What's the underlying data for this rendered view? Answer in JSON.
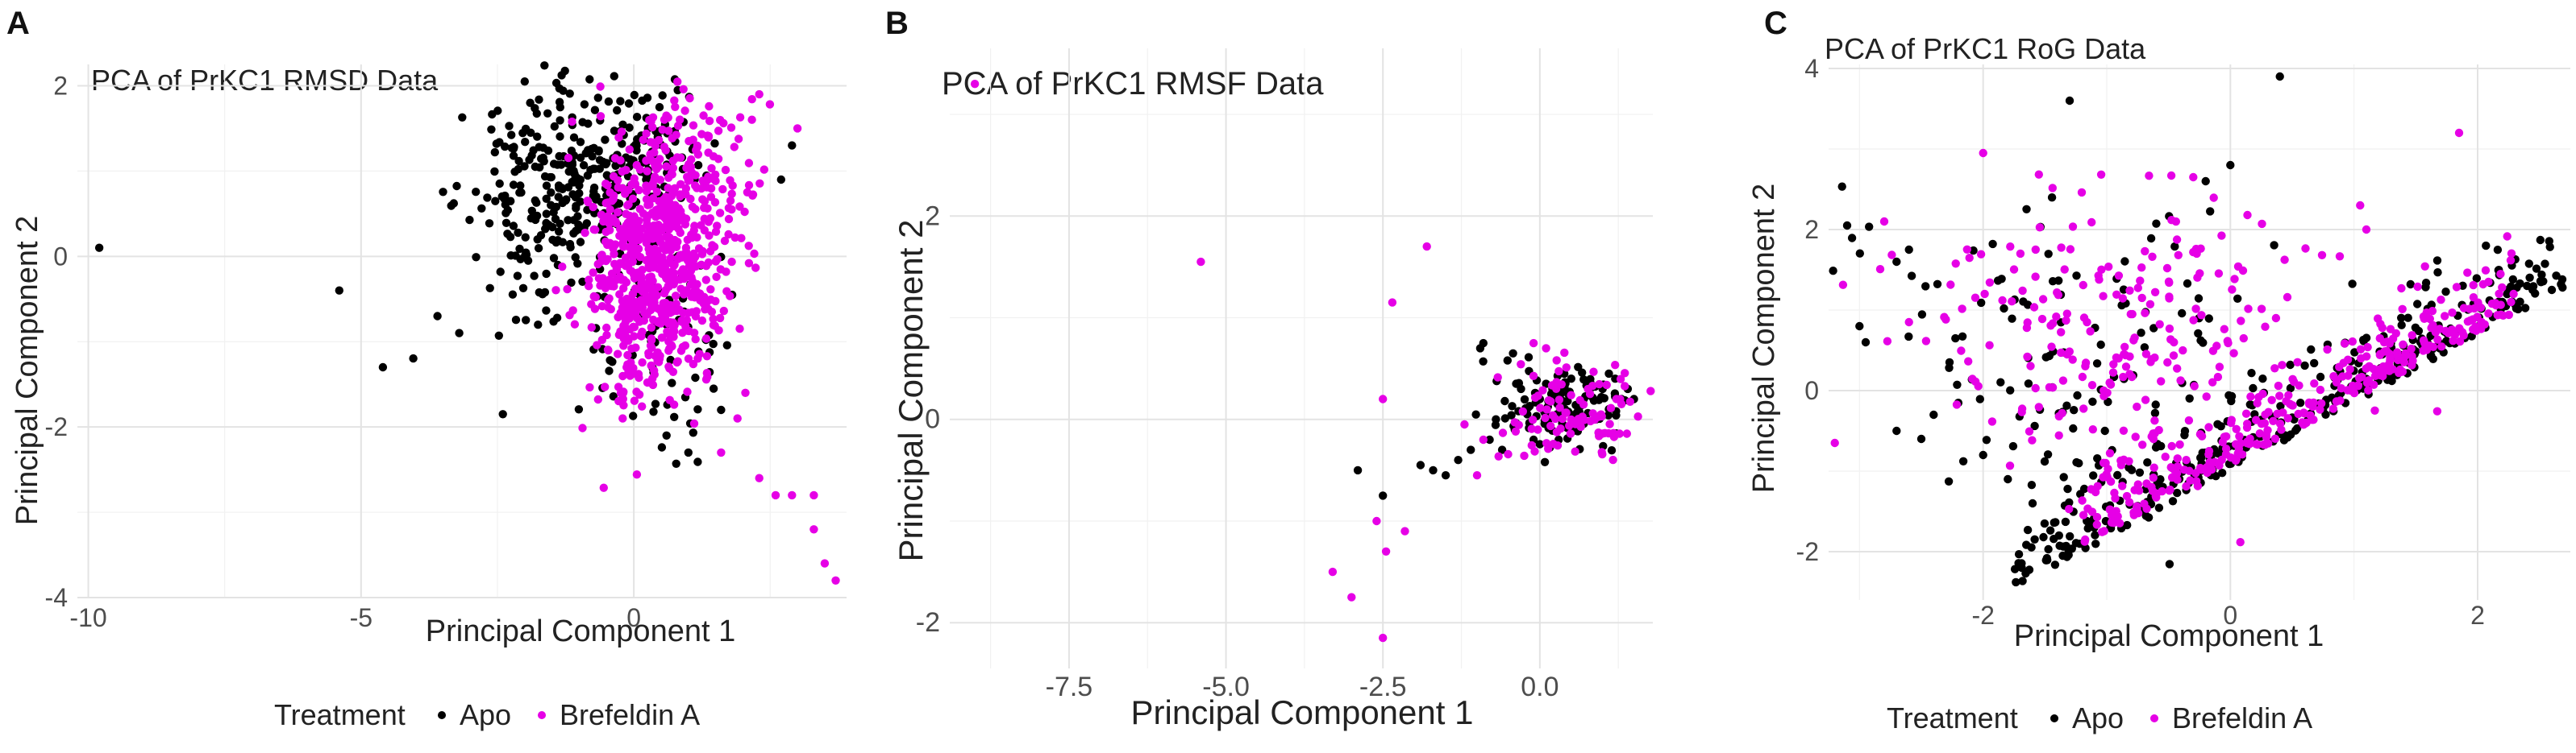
{
  "chart_data": [
    {
      "panel": "A",
      "type": "scatter",
      "title": "PCA of PrKC1 RMSD Data",
      "xlabel": "Principal Component 1",
      "ylabel": "Principal Component 2",
      "xlim": [
        -10.2,
        3.9
      ],
      "ylim": [
        -4.0,
        2.25
      ],
      "xticks": [
        -10,
        -5,
        0
      ],
      "yticks": [
        -4,
        -2,
        0,
        2
      ],
      "grid": true,
      "legend": {
        "position": "bottom",
        "title": "Treatment",
        "entries": [
          "Apo",
          "Brefeldin A"
        ]
      },
      "series": [
        {
          "name": "Apo",
          "color": "#000000",
          "points": [
            [
              -9.8,
              0.1
            ],
            [
              -5.4,
              -0.4
            ],
            [
              -4.6,
              -1.3
            ],
            [
              -2.4,
              -1.85
            ],
            [
              -2.0,
              2.05
            ],
            [
              -1.9,
              1.8
            ],
            [
              1.0,
              -2.3
            ],
            [
              0.6,
              -2.1
            ],
            [
              1.6,
              -1.8
            ],
            [
              2.7,
              0.9
            ],
            [
              2.9,
              1.3
            ],
            [
              -3.2,
              -0.9
            ],
            [
              -3.6,
              -0.7
            ]
          ],
          "clusters": [
            {
              "n": 230,
              "cx": -1.6,
              "cy": 0.55,
              "sx": 0.75,
              "sy": 0.65
            },
            {
              "n": 130,
              "cx": -0.1,
              "cy": 1.2,
              "sx": 0.7,
              "sy": 0.4
            },
            {
              "n": 70,
              "cx": 0.5,
              "cy": -0.9,
              "sx": 0.7,
              "sy": 0.7
            }
          ]
        },
        {
          "name": "Brefeldin A",
          "color": "#e600e6",
          "points": [
            [
              2.3,
              -2.6
            ],
            [
              2.6,
              -2.8
            ],
            [
              2.9,
              -2.8
            ],
            [
              3.3,
              -2.8
            ],
            [
              3.3,
              -3.2
            ],
            [
              3.5,
              -3.6
            ],
            [
              3.7,
              -3.8
            ],
            [
              1.6,
              -2.3
            ],
            [
              1.9,
              -1.9
            ],
            [
              2.3,
              1.9
            ],
            [
              3.0,
              1.5
            ]
          ],
          "clusters": [
            {
              "n": 640,
              "cx": 0.35,
              "cy": -0.1,
              "sx": 0.6,
              "sy": 0.75
            },
            {
              "n": 130,
              "cx": 1.2,
              "cy": 0.8,
              "sx": 0.55,
              "sy": 0.75
            }
          ]
        }
      ]
    },
    {
      "panel": "B",
      "type": "scatter",
      "title": "PCA of PrKC1 RMSF Data",
      "xlabel": "Principal Component 1",
      "ylabel": "Principal Component 2",
      "xlim": [
        -9.4,
        1.8
      ],
      "ylim": [
        -2.45,
        3.65
      ],
      "xticks": [
        -7.5,
        -5.0,
        -2.5,
        0.0
      ],
      "xtick_labels": [
        "-7.5",
        "-5.0",
        "-2.5",
        "0.0"
      ],
      "yticks": [
        -2,
        0,
        2
      ],
      "grid": true,
      "series": [
        {
          "name": "Apo",
          "color": "#000000",
          "points": [
            [
              -2.9,
              -0.5
            ],
            [
              -2.5,
              -0.75
            ],
            [
              -1.9,
              -0.45
            ],
            [
              -1.7,
              -0.5
            ],
            [
              -1.5,
              -0.55
            ],
            [
              -1.3,
              -0.4
            ],
            [
              -1.1,
              -0.3
            ],
            [
              -0.95,
              0.7
            ],
            [
              -0.9,
              0.75
            ],
            [
              -0.8,
              -0.2
            ],
            [
              -0.6,
              -0.3
            ],
            [
              -0.4,
              -0.1
            ],
            [
              -0.2,
              0.05
            ],
            [
              -0.1,
              -0.2
            ],
            [
              0.0,
              0.2
            ],
            [
              0.2,
              0.3
            ],
            [
              0.4,
              0.1
            ],
            [
              0.5,
              0.4
            ],
            [
              0.7,
              0.2
            ],
            [
              0.8,
              0.35
            ],
            [
              1.0,
              0.3
            ],
            [
              1.1,
              0.1
            ],
            [
              1.2,
              0.4
            ],
            [
              1.3,
              0.2
            ],
            [
              1.4,
              0.3
            ],
            [
              1.5,
              0.2
            ],
            [
              0.3,
              -0.2
            ],
            [
              0.6,
              0.0
            ],
            [
              0.9,
              0.0
            ],
            [
              -0.3,
              0.3
            ],
            [
              0.1,
              0.35
            ],
            [
              1.1,
              0.45
            ],
            [
              0.45,
              0.25
            ],
            [
              -0.7,
              0.0
            ]
          ],
          "clusters": [
            {
              "n": 110,
              "cx": 0.45,
              "cy": 0.1,
              "sx": 0.6,
              "sy": 0.22
            }
          ]
        },
        {
          "name": "Brefeldin A",
          "color": "#e600e6",
          "points": [
            [
              -9.0,
              3.3
            ],
            [
              -5.4,
              1.55
            ],
            [
              -1.8,
              1.7
            ],
            [
              -2.35,
              1.15
            ],
            [
              -2.5,
              0.2
            ],
            [
              -3.3,
              -1.5
            ],
            [
              -3.0,
              -1.75
            ],
            [
              -2.6,
              -1.0
            ],
            [
              -2.45,
              -1.3
            ],
            [
              -2.15,
              -1.1
            ],
            [
              -2.5,
              -2.15
            ],
            [
              -0.1,
              0.75
            ],
            [
              0.1,
              0.7
            ],
            [
              -1.2,
              -0.05
            ],
            [
              -0.9,
              -0.2
            ],
            [
              -1.0,
              -0.55
            ],
            [
              0.8,
              0.25
            ],
            [
              1.3,
              0.15
            ]
          ],
          "clusters": [
            {
              "n": 95,
              "cx": 0.55,
              "cy": 0.1,
              "sx": 0.55,
              "sy": 0.22
            }
          ]
        }
      ]
    },
    {
      "panel": "C",
      "type": "scatter",
      "title": "PCA of PrKC1 RoG Data",
      "xlabel": "Principal Component 1",
      "ylabel": "Principal Component 2",
      "xlim": [
        -3.25,
        2.75
      ],
      "ylim": [
        -2.6,
        4.05
      ],
      "xticks": [
        -2,
        0,
        2
      ],
      "yticks": [
        -2,
        0,
        2,
        4
      ],
      "grid": true,
      "legend": {
        "position": "bottom",
        "title": "Treatment",
        "entries": [
          "Apo",
          "Brefeldin A"
        ]
      },
      "series": [
        {
          "name": "Apo",
          "color": "#000000",
          "points": [
            [
              -3.1,
              2.05
            ],
            [
              -3.0,
              0.8
            ],
            [
              -2.95,
              0.6
            ],
            [
              -2.7,
              1.6
            ],
            [
              -2.6,
              1.75
            ],
            [
              -1.3,
              3.6
            ],
            [
              0.4,
              3.9
            ],
            [
              0.0,
              2.8
            ],
            [
              -0.2,
              2.6
            ],
            [
              -2.7,
              -0.5
            ],
            [
              -2.5,
              -0.6
            ],
            [
              -2.4,
              -0.3
            ],
            [
              -2.0,
              -0.8
            ],
            [
              -1.8,
              -1.1
            ],
            [
              -1.6,
              -1.4
            ],
            [
              2.6,
              1.25
            ],
            [
              2.4,
              1.3
            ],
            [
              2.2,
              1.1
            ]
          ],
          "band": {
            "n": 340,
            "x0": -1.8,
            "x1": 2.7,
            "y0": -2.5,
            "slope": 0.84,
            "spread": 0.42
          },
          "clusters": [
            {
              "n": 110,
              "cx": -1.3,
              "cy": 0.6,
              "sx": 0.9,
              "sy": 0.9
            }
          ]
        },
        {
          "name": "Brefeldin A",
          "color": "#e600e6",
          "points": [
            [
              -3.2,
              -0.65
            ],
            [
              -2.8,
              2.1
            ],
            [
              -2.0,
              2.95
            ],
            [
              -0.3,
              2.65
            ],
            [
              1.05,
              2.3
            ],
            [
              1.85,
              3.2
            ],
            [
              1.1,
              2.0
            ],
            [
              -2.6,
              0.85
            ]
          ],
          "band": {
            "n": 330,
            "x0": -1.2,
            "x1": 2.3,
            "y0": -1.9,
            "slope": 0.82,
            "spread": 0.38
          },
          "clusters": [
            {
              "n": 210,
              "cx": -0.9,
              "cy": 0.8,
              "sx": 0.75,
              "sy": 0.8
            }
          ]
        }
      ]
    }
  ]
}
